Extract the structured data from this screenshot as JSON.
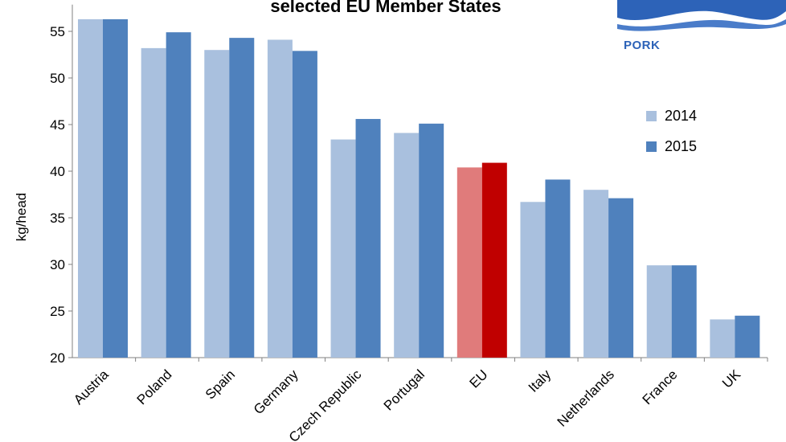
{
  "chart_data": {
    "type": "bar",
    "title": "selected EU Member States",
    "xlabel": "",
    "ylabel": "kg/head",
    "ylim": [
      20,
      57
    ],
    "yticks": [
      20,
      25,
      30,
      35,
      40,
      45,
      50,
      55
    ],
    "categories": [
      "Austria",
      "Poland",
      "Spain",
      "Germany",
      "Czech Republic",
      "Portugal",
      "EU",
      "Italy",
      "Netherlands",
      "France",
      "UK"
    ],
    "series": [
      {
        "name": "2014",
        "color": "#a9c0de",
        "values": [
          56.3,
          53.2,
          53.0,
          54.1,
          43.4,
          44.1,
          40.4,
          36.7,
          38.0,
          29.9,
          24.1
        ]
      },
      {
        "name": "2015",
        "color": "#4f81bd",
        "values": [
          56.3,
          54.9,
          54.3,
          52.9,
          45.6,
          45.1,
          40.9,
          39.1,
          37.1,
          29.9,
          24.5
        ]
      }
    ],
    "highlight": {
      "category": "EU",
      "colors": [
        "#e07b7b",
        "#c00000"
      ]
    },
    "grid": false,
    "legend_position": "top-right"
  },
  "branding": {
    "section": "PORK",
    "logo_color": "#2d63b8"
  }
}
